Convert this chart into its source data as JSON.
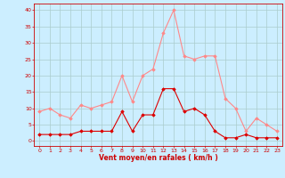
{
  "x": [
    0,
    1,
    2,
    3,
    4,
    5,
    6,
    7,
    8,
    9,
    10,
    11,
    12,
    13,
    14,
    15,
    16,
    17,
    18,
    19,
    20,
    21,
    22,
    23
  ],
  "wind_avg": [
    2,
    2,
    2,
    2,
    3,
    3,
    3,
    3,
    9,
    3,
    8,
    8,
    16,
    16,
    9,
    10,
    8,
    3,
    1,
    1,
    2,
    1,
    1,
    1
  ],
  "wind_gust": [
    9,
    10,
    8,
    7,
    11,
    10,
    11,
    12,
    20,
    12,
    20,
    22,
    33,
    40,
    26,
    25,
    26,
    26,
    13,
    10,
    3,
    7,
    5,
    3
  ],
  "bg_color": "#cceeff",
  "grid_color": "#aacccc",
  "avg_color": "#dd0000",
  "gust_color": "#ff8888",
  "xlabel": "Vent moyen/en rafales ( km/h )",
  "xlabel_color": "#cc0000",
  "tick_color": "#cc0000",
  "yticks": [
    0,
    5,
    10,
    15,
    20,
    25,
    30,
    35,
    40
  ],
  "xticks": [
    0,
    1,
    2,
    3,
    4,
    5,
    6,
    7,
    8,
    9,
    10,
    11,
    12,
    13,
    14,
    15,
    16,
    17,
    18,
    19,
    20,
    21,
    22,
    23
  ],
  "ylim": [
    -1.5,
    42
  ],
  "xlim": [
    -0.5,
    23.5
  ]
}
